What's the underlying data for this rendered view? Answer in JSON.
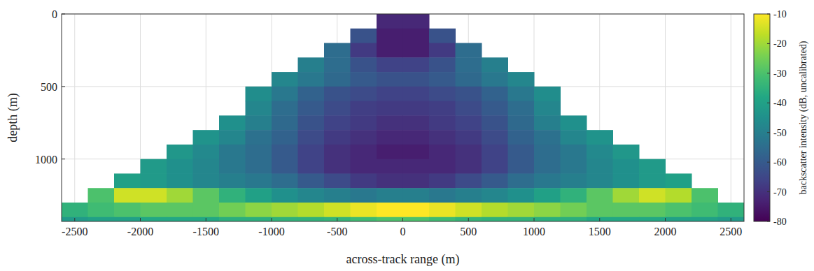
{
  "chart_data": {
    "type": "heatmap",
    "xlabel": "across-track range (m)",
    "ylabel": "depth (m)",
    "colorbar_label": "backscatter intensity (dB, uncalibrated)",
    "xlim": [
      -2600,
      2600
    ],
    "ylim": [
      1430,
      0
    ],
    "xticks": [
      -2500,
      -2000,
      -1500,
      -1000,
      -500,
      0,
      500,
      1000,
      1500,
      2000,
      2500
    ],
    "yticks": [
      0,
      500,
      1000
    ],
    "grid": true,
    "x_edges": [
      -2600,
      -2400,
      -2200,
      -2000,
      -1800,
      -1600,
      -1400,
      -1200,
      -1000,
      -800,
      -600,
      -400,
      -200,
      0,
      200,
      400,
      600,
      800,
      1000,
      1200,
      1400,
      1600,
      1800,
      2000,
      2200,
      2400,
      2600
    ],
    "y_edges": [
      0,
      100,
      200,
      300,
      400,
      500,
      600,
      700,
      800,
      900,
      1000,
      1100,
      1200,
      1300,
      1400,
      1500
    ],
    "cells": [
      [
        null,
        null,
        null,
        null,
        null,
        null,
        null,
        null,
        null,
        null,
        null,
        null,
        -72,
        -72,
        null,
        null,
        null,
        null,
        null,
        null,
        null,
        null,
        null,
        null,
        null,
        null
      ],
      [
        null,
        null,
        null,
        null,
        null,
        null,
        null,
        null,
        null,
        null,
        null,
        -62,
        -74,
        -74,
        -62,
        null,
        null,
        null,
        null,
        null,
        null,
        null,
        null,
        null,
        null,
        null
      ],
      [
        null,
        null,
        null,
        null,
        null,
        null,
        null,
        null,
        null,
        null,
        -55,
        -68,
        -74,
        -74,
        -68,
        -55,
        null,
        null,
        null,
        null,
        null,
        null,
        null,
        null,
        null,
        null
      ],
      [
        null,
        null,
        null,
        null,
        null,
        null,
        null,
        null,
        null,
        -50,
        -55,
        -62,
        -66,
        -66,
        -62,
        -55,
        -50,
        null,
        null,
        null,
        null,
        null,
        null,
        null,
        null,
        null
      ],
      [
        null,
        null,
        null,
        null,
        null,
        null,
        null,
        null,
        -48,
        -52,
        -56,
        -60,
        -62,
        -62,
        -60,
        -56,
        -52,
        -48,
        null,
        null,
        null,
        null,
        null,
        null,
        null,
        null
      ],
      [
        null,
        null,
        null,
        null,
        null,
        null,
        null,
        -46,
        -52,
        -58,
        -62,
        -64,
        -66,
        -66,
        -64,
        -62,
        -58,
        -52,
        -46,
        null,
        null,
        null,
        null,
        null,
        null,
        null
      ],
      [
        null,
        null,
        null,
        null,
        null,
        null,
        null,
        -48,
        -55,
        -60,
        -64,
        -67,
        -68,
        -68,
        -67,
        -64,
        -60,
        -55,
        -48,
        null,
        null,
        null,
        null,
        null,
        null,
        null
      ],
      [
        null,
        null,
        null,
        null,
        null,
        null,
        -45,
        -50,
        -56,
        -62,
        -66,
        -68,
        -70,
        -70,
        -68,
        -66,
        -62,
        -56,
        -50,
        -45,
        null,
        null,
        null,
        null,
        null,
        null
      ],
      [
        null,
        null,
        null,
        null,
        null,
        -44,
        -48,
        -54,
        -58,
        -64,
        -68,
        -70,
        -72,
        -72,
        -70,
        -68,
        -64,
        -58,
        -54,
        -48,
        -44,
        null,
        null,
        null,
        null,
        null
      ],
      [
        null,
        null,
        null,
        null,
        -43,
        -47,
        -52,
        -55,
        -60,
        -66,
        -70,
        -72,
        -74,
        -74,
        -72,
        -70,
        -66,
        -60,
        -55,
        -52,
        -47,
        -43,
        null,
        null,
        null,
        null
      ],
      [
        null,
        null,
        null,
        -42,
        -45,
        -48,
        -52,
        -55,
        -60,
        -66,
        -70,
        -72,
        -72,
        -72,
        -72,
        -70,
        -66,
        -60,
        -55,
        -52,
        -48,
        -45,
        -42,
        null,
        null,
        null
      ],
      [
        null,
        null,
        -40,
        -42,
        -45,
        -48,
        -50,
        -52,
        -55,
        -60,
        -64,
        -68,
        -70,
        -70,
        -68,
        -64,
        -60,
        -55,
        -52,
        -50,
        -48,
        -45,
        -42,
        -40,
        null,
        null
      ],
      [
        null,
        -30,
        -15,
        -15,
        -20,
        -28,
        -35,
        -40,
        -45,
        -48,
        -50,
        -52,
        -50,
        -50,
        -52,
        -50,
        -48,
        -45,
        -40,
        -35,
        -28,
        -20,
        -15,
        -18,
        -30,
        null
      ],
      [
        -35,
        -32,
        -30,
        -28,
        -28,
        -28,
        -25,
        -22,
        -20,
        -18,
        -15,
        -12,
        -10,
        -10,
        -12,
        -15,
        -18,
        -20,
        -22,
        -25,
        -28,
        -28,
        -28,
        -30,
        -32,
        -35
      ],
      [
        -42,
        -40,
        -40,
        -38,
        -38,
        -38,
        -36,
        -36,
        -35,
        -35,
        -34,
        -32,
        -30,
        -30,
        -32,
        -34,
        -35,
        -35,
        -36,
        -36,
        -38,
        -38,
        -38,
        -40,
        -40,
        -42
      ]
    ],
    "colorbar_range": [
      -80,
      -10
    ],
    "colorbar_ticks": [
      -10,
      -20,
      -30,
      -40,
      -50,
      -60,
      -70,
      -80
    ]
  }
}
